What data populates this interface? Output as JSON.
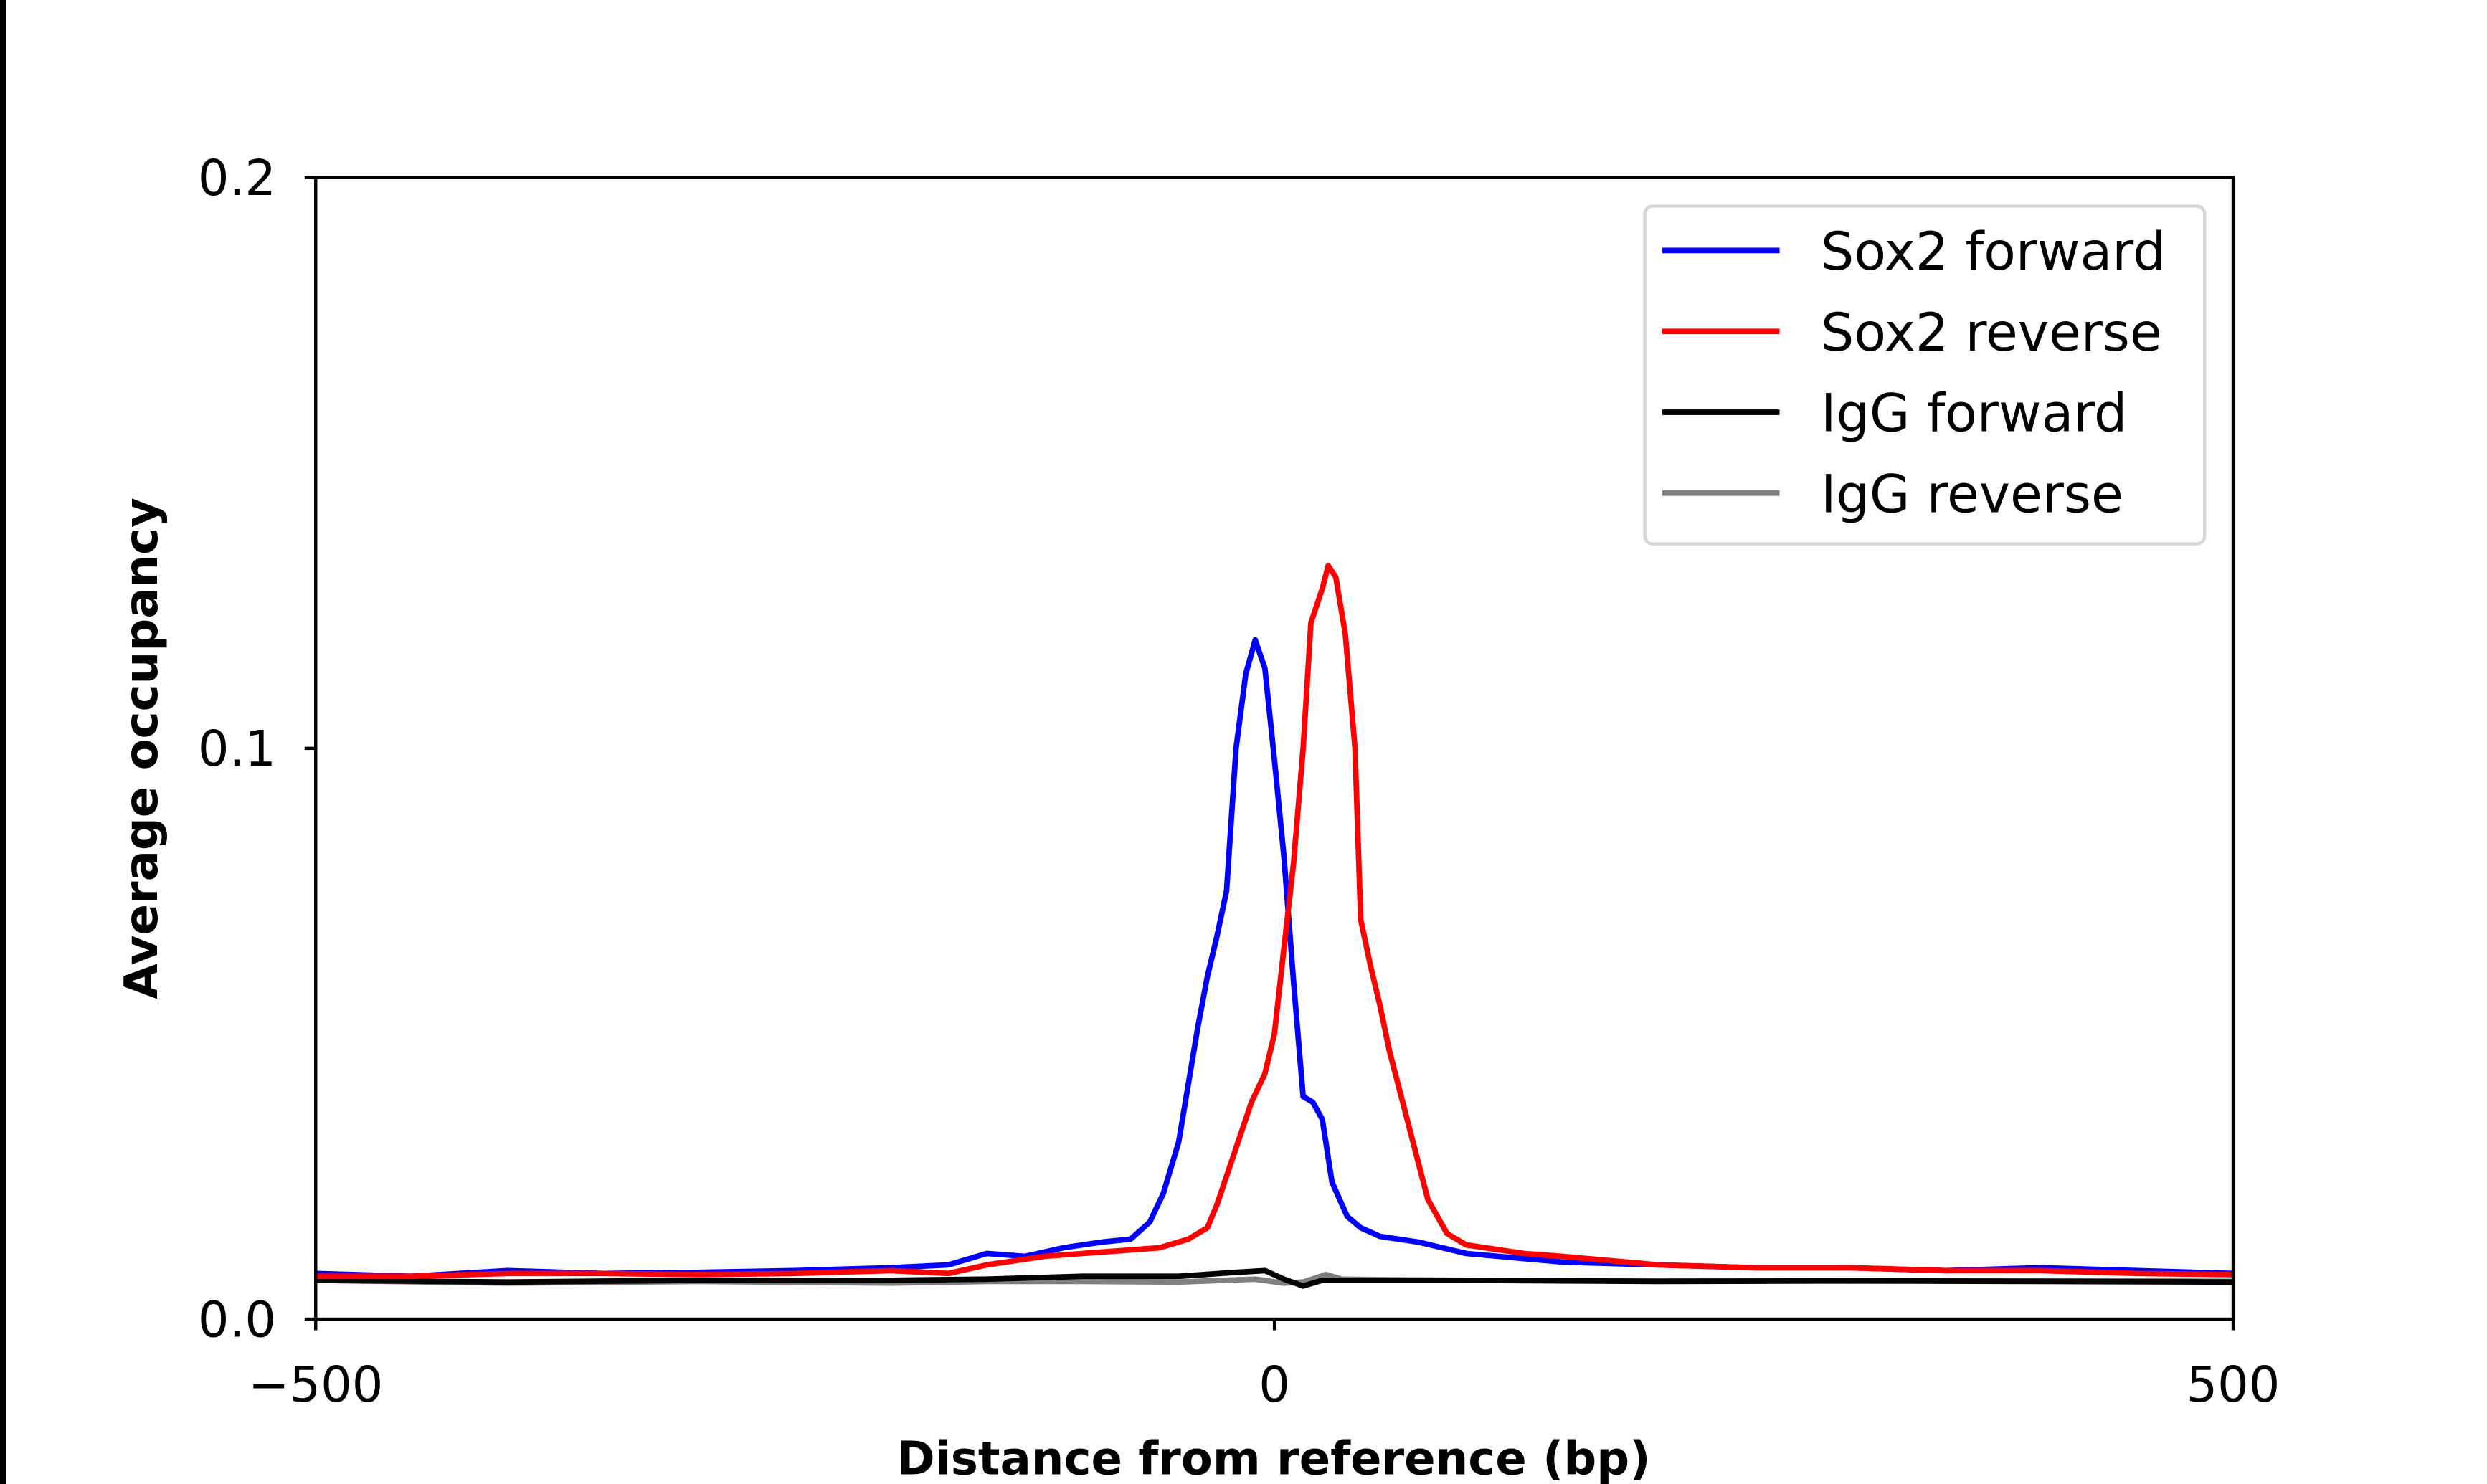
{
  "chart_data": {
    "type": "line",
    "xlabel": "Distance from reference (bp)",
    "ylabel": "Average occupancy",
    "xlim": [
      -500,
      500
    ],
    "ylim": [
      0.0,
      0.2
    ],
    "xticks": [
      -500,
      0,
      500
    ],
    "xtick_labels": [
      "−500",
      "0",
      "500"
    ],
    "yticks": [
      0.0,
      0.1,
      0.2
    ],
    "ytick_labels": [
      "0.0",
      "0.1",
      "0.2"
    ],
    "grid": false,
    "legend_position": "top-right",
    "series": [
      {
        "name": "Sox2 forward",
        "color": "#0000ff",
        "points": [
          [
            -500,
            0.008
          ],
          [
            -450,
            0.0075
          ],
          [
            -400,
            0.0085
          ],
          [
            -350,
            0.008
          ],
          [
            -300,
            0.0082
          ],
          [
            -250,
            0.0085
          ],
          [
            -200,
            0.009
          ],
          [
            -170,
            0.0095
          ],
          [
            -150,
            0.0115
          ],
          [
            -130,
            0.011
          ],
          [
            -110,
            0.0125
          ],
          [
            -90,
            0.0135
          ],
          [
            -75,
            0.014
          ],
          [
            -65,
            0.017
          ],
          [
            -58,
            0.022
          ],
          [
            -50,
            0.031
          ],
          [
            -45,
            0.041
          ],
          [
            -40,
            0.051
          ],
          [
            -35,
            0.06
          ],
          [
            -30,
            0.067
          ],
          [
            -25,
            0.075
          ],
          [
            -20,
            0.1
          ],
          [
            -15,
            0.113
          ],
          [
            -10,
            0.119
          ],
          [
            -5,
            0.114
          ],
          [
            0,
            0.098
          ],
          [
            5,
            0.081
          ],
          [
            10,
            0.059
          ],
          [
            15,
            0.039
          ],
          [
            20,
            0.038
          ],
          [
            25,
            0.035
          ],
          [
            30,
            0.024
          ],
          [
            38,
            0.018
          ],
          [
            45,
            0.016
          ],
          [
            55,
            0.0145
          ],
          [
            75,
            0.0135
          ],
          [
            100,
            0.0115
          ],
          [
            150,
            0.01
          ],
          [
            200,
            0.0095
          ],
          [
            250,
            0.009
          ],
          [
            300,
            0.009
          ],
          [
            350,
            0.0085
          ],
          [
            400,
            0.009
          ],
          [
            450,
            0.0085
          ],
          [
            500,
            0.008
          ]
        ]
      },
      {
        "name": "Sox2 reverse",
        "color": "#ff0000",
        "points": [
          [
            -500,
            0.0075
          ],
          [
            -450,
            0.0075
          ],
          [
            -400,
            0.008
          ],
          [
            -350,
            0.008
          ],
          [
            -300,
            0.0078
          ],
          [
            -250,
            0.008
          ],
          [
            -200,
            0.0085
          ],
          [
            -170,
            0.008
          ],
          [
            -150,
            0.0095
          ],
          [
            -120,
            0.011
          ],
          [
            -100,
            0.0115
          ],
          [
            -80,
            0.012
          ],
          [
            -60,
            0.0125
          ],
          [
            -45,
            0.014
          ],
          [
            -35,
            0.016
          ],
          [
            -30,
            0.02
          ],
          [
            -20,
            0.03
          ],
          [
            -12,
            0.038
          ],
          [
            -5,
            0.043
          ],
          [
            0,
            0.05
          ],
          [
            5,
            0.065
          ],
          [
            10,
            0.08
          ],
          [
            15,
            0.1
          ],
          [
            19,
            0.122
          ],
          [
            25,
            0.128
          ],
          [
            28,
            0.132
          ],
          [
            32,
            0.13
          ],
          [
            37,
            0.12
          ],
          [
            42,
            0.1
          ],
          [
            45,
            0.07
          ],
          [
            50,
            0.062
          ],
          [
            55,
            0.055
          ],
          [
            60,
            0.047
          ],
          [
            70,
            0.034
          ],
          [
            80,
            0.021
          ],
          [
            90,
            0.015
          ],
          [
            100,
            0.013
          ],
          [
            130,
            0.0115
          ],
          [
            150,
            0.011
          ],
          [
            200,
            0.0095
          ],
          [
            250,
            0.009
          ],
          [
            300,
            0.009
          ],
          [
            350,
            0.0085
          ],
          [
            400,
            0.0085
          ],
          [
            450,
            0.008
          ],
          [
            500,
            0.0078
          ]
        ]
      },
      {
        "name": "IgG forward",
        "color": "#000000",
        "points": [
          [
            -500,
            0.0068
          ],
          [
            -400,
            0.0065
          ],
          [
            -300,
            0.0068
          ],
          [
            -200,
            0.0068
          ],
          [
            -150,
            0.007
          ],
          [
            -100,
            0.0075
          ],
          [
            -50,
            0.0075
          ],
          [
            -20,
            0.0082
          ],
          [
            -5,
            0.0085
          ],
          [
            5,
            0.007
          ],
          [
            15,
            0.0058
          ],
          [
            25,
            0.0068
          ],
          [
            50,
            0.0068
          ],
          [
            100,
            0.0068
          ],
          [
            200,
            0.0066
          ],
          [
            300,
            0.0067
          ],
          [
            400,
            0.0066
          ],
          [
            500,
            0.0065
          ]
        ]
      },
      {
        "name": "IgG reverse",
        "color": "#808080",
        "points": [
          [
            -500,
            0.0068
          ],
          [
            -400,
            0.0063
          ],
          [
            -300,
            0.0066
          ],
          [
            -200,
            0.0063
          ],
          [
            -150,
            0.0066
          ],
          [
            -100,
            0.0066
          ],
          [
            -50,
            0.0065
          ],
          [
            -10,
            0.007
          ],
          [
            5,
            0.0063
          ],
          [
            15,
            0.0065
          ],
          [
            27,
            0.0078
          ],
          [
            35,
            0.007
          ],
          [
            60,
            0.0069
          ],
          [
            100,
            0.0068
          ],
          [
            200,
            0.0068
          ],
          [
            300,
            0.0067
          ],
          [
            400,
            0.0068
          ],
          [
            500,
            0.0066
          ]
        ]
      }
    ]
  }
}
